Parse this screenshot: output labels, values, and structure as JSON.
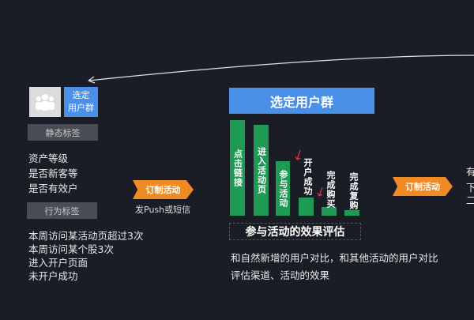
{
  "left": {
    "select_group": "选定\n用户群",
    "static_tag": "静态标签",
    "static_items": [
      "资产等级",
      "是否新客等",
      "是否有效户"
    ],
    "behavior_tag": "行为标签",
    "behavior_items": [
      "本周访问某活动页超过3次",
      "本周访问某个股3次",
      "进入开户页面",
      "未开户成功"
    ]
  },
  "arrow1": {
    "label": "订制活动",
    "caption": "发Push或短信"
  },
  "middle": {
    "title": "选定用户群",
    "funnel": [
      "点击链接",
      "进入活动页",
      "参与活动",
      "开户成功",
      "完成购买",
      "完成复购"
    ],
    "eval_title": "参与活动的效果评估",
    "notes": [
      "和自然新增的用户对比，和其他活动的用户对比",
      "评估渠道、活动的效果"
    ]
  },
  "arrow2": {
    "label": "订制活动"
  },
  "right": {
    "partial": [
      "有",
      "下",
      "二"
    ]
  },
  "colors": {
    "background": "#1b1d26",
    "blue": "#4a8fe8",
    "green": "#1f9a55",
    "orange": "#f08a24",
    "red_arrow": "#d9363e"
  }
}
